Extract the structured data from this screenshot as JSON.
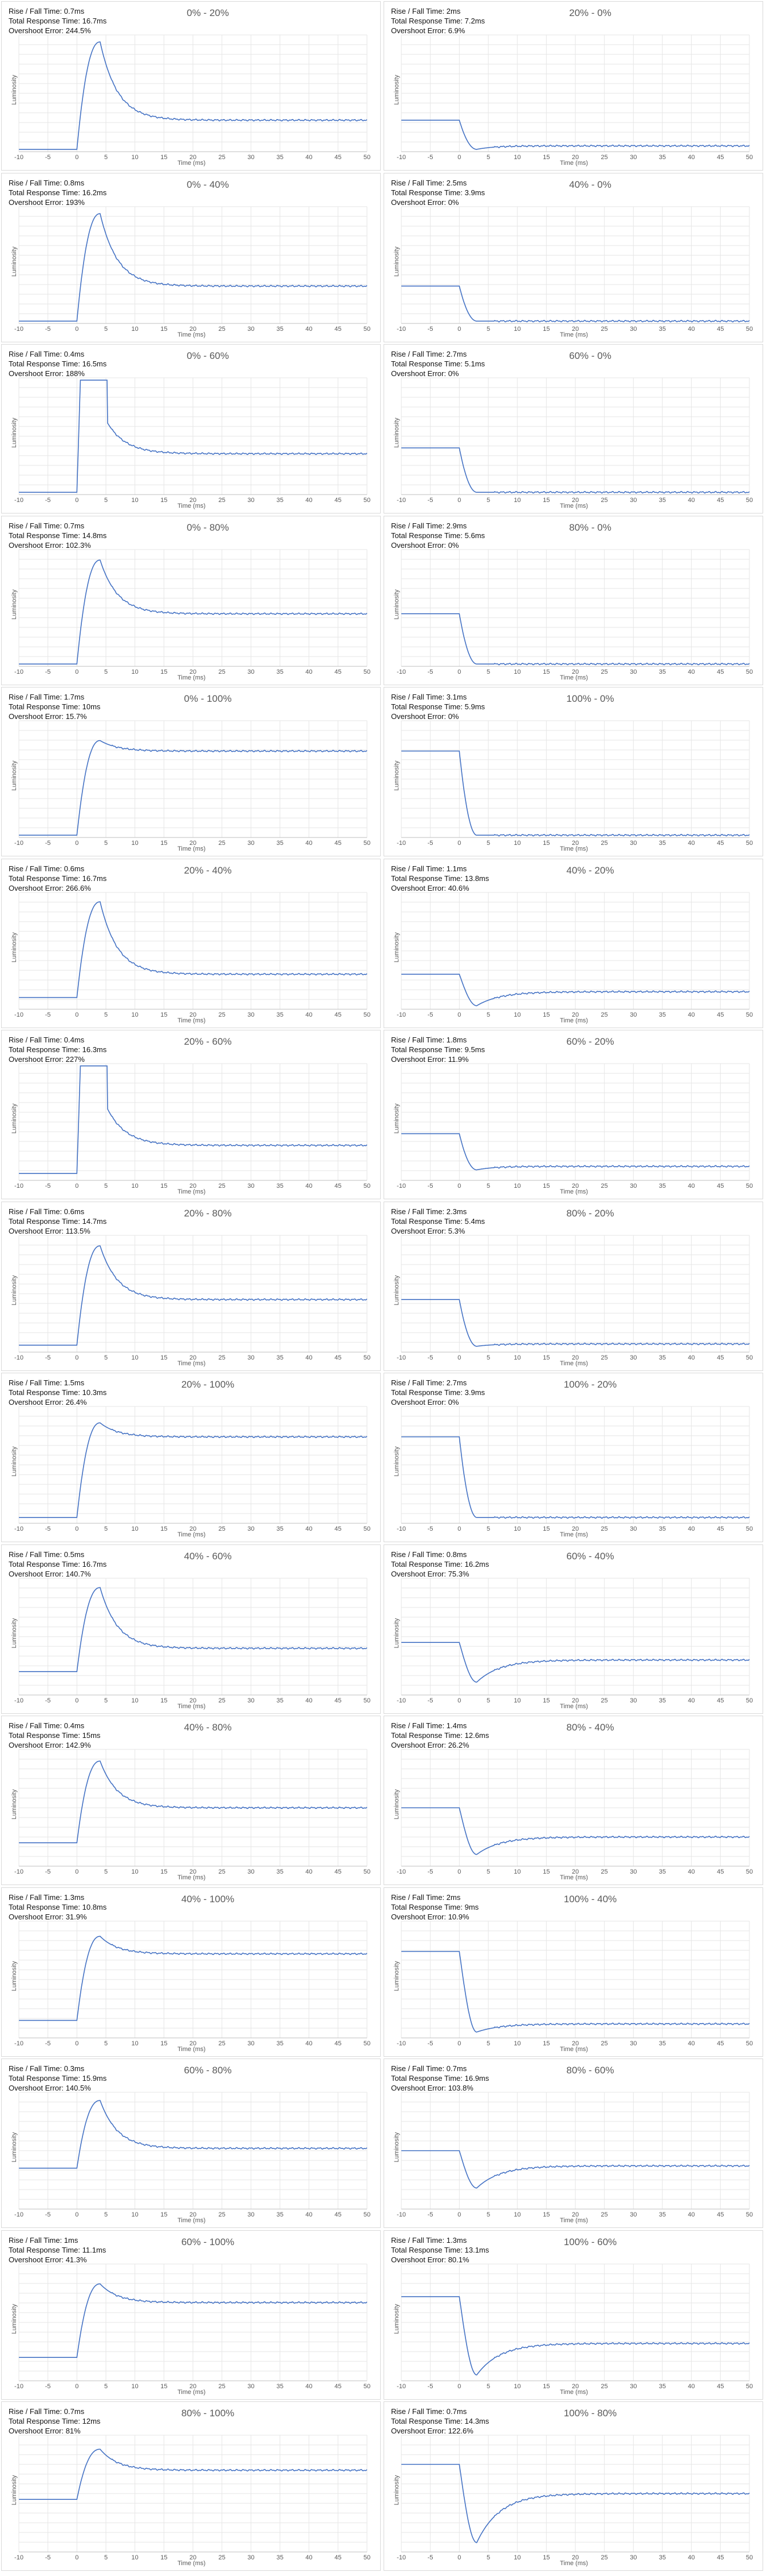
{
  "chart_data": [
    {
      "type": "line",
      "title": "0% - 20%",
      "xlabel": "Time (ms)",
      "ylabel": "Luminosity",
      "stats": [
        "Rise / Fall Time: 0.7ms",
        "Total Response Time: 16.7ms",
        "Overshoot Error: 244.5%"
      ],
      "x_ticks": [
        -10,
        -5,
        0,
        5,
        10,
        15,
        20,
        25,
        30,
        35,
        40,
        45,
        50
      ],
      "xlim": [
        -10,
        50
      ],
      "y_start": 0.02,
      "y_target": 0.27,
      "y_peak": 0.94,
      "shape": "overshoot_decay",
      "clipped": false
    },
    {
      "type": "line",
      "title": "20% - 0%",
      "xlabel": "Time (ms)",
      "ylabel": "Luminosity",
      "stats": [
        "Rise / Fall Time: 2ms",
        "Total Response Time: 7.2ms",
        "Overshoot Error: 6.9%"
      ],
      "x_ticks": [
        -10,
        -5,
        0,
        5,
        10,
        15,
        20,
        25,
        30,
        35,
        40,
        45,
        50
      ],
      "xlim": [
        -10,
        50
      ],
      "y_start": 0.27,
      "y_target": 0.05,
      "y_peak": 0.02,
      "shape": "fall",
      "clipped": false
    },
    {
      "type": "line",
      "title": "0% - 40%",
      "xlabel": "Time (ms)",
      "ylabel": "Luminosity",
      "stats": [
        "Rise / Fall Time: 0.8ms",
        "Total Response Time: 16.2ms",
        "Overshoot Error: 193%"
      ],
      "x_ticks": [
        -10,
        -5,
        0,
        5,
        10,
        15,
        20,
        25,
        30,
        35,
        40,
        45,
        50
      ],
      "xlim": [
        -10,
        50
      ],
      "y_start": 0.02,
      "y_target": 0.32,
      "y_peak": 0.94,
      "shape": "overshoot_decay",
      "clipped": false
    },
    {
      "type": "line",
      "title": "40% - 0%",
      "xlabel": "Time (ms)",
      "ylabel": "Luminosity",
      "stats": [
        "Rise / Fall Time: 2.5ms",
        "Total Response Time: 3.9ms",
        "Overshoot Error: 0%"
      ],
      "x_ticks": [
        -10,
        -5,
        0,
        5,
        10,
        15,
        20,
        25,
        30,
        35,
        40,
        45,
        50
      ],
      "xlim": [
        -10,
        50
      ],
      "y_start": 0.32,
      "y_target": 0.02,
      "y_peak": 0.02,
      "shape": "fall",
      "clipped": false
    },
    {
      "type": "line",
      "title": "0% - 60%",
      "xlabel": "Time (ms)",
      "ylabel": "Luminosity",
      "stats": [
        "Rise / Fall Time: 0.4ms",
        "Total Response Time: 16.5ms",
        "Overshoot Error: 188%"
      ],
      "x_ticks": [
        -10,
        -5,
        0,
        5,
        10,
        15,
        20,
        25,
        30,
        35,
        40,
        45,
        50
      ],
      "xlim": [
        -10,
        50
      ],
      "y_start": 0.02,
      "y_target": 0.35,
      "y_peak": 0.98,
      "shape": "overshoot_decay",
      "clipped": true
    },
    {
      "type": "line",
      "title": "60% - 0%",
      "xlabel": "Time (ms)",
      "ylabel": "Luminosity",
      "stats": [
        "Rise / Fall Time: 2.7ms",
        "Total Response Time: 5.1ms",
        "Overshoot Error: 0%"
      ],
      "x_ticks": [
        -10,
        -5,
        0,
        5,
        10,
        15,
        20,
        25,
        30,
        35,
        40,
        45,
        50
      ],
      "xlim": [
        -10,
        50
      ],
      "y_start": 0.4,
      "y_target": 0.02,
      "y_peak": 0.02,
      "shape": "fall",
      "clipped": false
    },
    {
      "type": "line",
      "title": "0% - 80%",
      "xlabel": "Time (ms)",
      "ylabel": "Luminosity",
      "stats": [
        "Rise / Fall Time: 0.7ms",
        "Total Response Time: 14.8ms",
        "Overshoot Error: 102.3%"
      ],
      "x_ticks": [
        -10,
        -5,
        0,
        5,
        10,
        15,
        20,
        25,
        30,
        35,
        40,
        45,
        50
      ],
      "xlim": [
        -10,
        50
      ],
      "y_start": 0.02,
      "y_target": 0.45,
      "y_peak": 0.91,
      "shape": "overshoot_decay",
      "clipped": false
    },
    {
      "type": "line",
      "title": "80% - 0%",
      "xlabel": "Time (ms)",
      "ylabel": "Luminosity",
      "stats": [
        "Rise / Fall Time: 2.9ms",
        "Total Response Time: 5.6ms",
        "Overshoot Error: 0%"
      ],
      "x_ticks": [
        -10,
        -5,
        0,
        5,
        10,
        15,
        20,
        25,
        30,
        35,
        40,
        45,
        50
      ],
      "xlim": [
        -10,
        50
      ],
      "y_start": 0.45,
      "y_target": 0.02,
      "y_peak": 0.02,
      "shape": "fall",
      "clipped": false
    },
    {
      "type": "line",
      "title": "0% - 100%",
      "xlabel": "Time (ms)",
      "ylabel": "Luminosity",
      "stats": [
        "Rise / Fall Time: 1.7ms",
        "Total Response Time: 10ms",
        "Overshoot Error: 15.7%"
      ],
      "x_ticks": [
        -10,
        -5,
        0,
        5,
        10,
        15,
        20,
        25,
        30,
        35,
        40,
        45,
        50
      ],
      "xlim": [
        -10,
        50
      ],
      "y_start": 0.02,
      "y_target": 0.74,
      "y_peak": 0.83,
      "shape": "overshoot_decay",
      "clipped": false
    },
    {
      "type": "line",
      "title": "100% - 0%",
      "xlabel": "Time (ms)",
      "ylabel": "Luminosity",
      "stats": [
        "Rise / Fall Time: 3.1ms",
        "Total Response Time: 5.9ms",
        "Overshoot Error: 0%"
      ],
      "x_ticks": [
        -10,
        -5,
        0,
        5,
        10,
        15,
        20,
        25,
        30,
        35,
        40,
        45,
        50
      ],
      "xlim": [
        -10,
        50
      ],
      "y_start": 0.74,
      "y_target": 0.02,
      "y_peak": 0.02,
      "shape": "fall",
      "clipped": false
    },
    {
      "type": "line",
      "title": "20% - 40%",
      "xlabel": "Time (ms)",
      "ylabel": "Luminosity",
      "stats": [
        "Rise / Fall Time: 0.6ms",
        "Total Response Time: 16.7ms",
        "Overshoot Error: 266.6%"
      ],
      "x_ticks": [
        -10,
        -5,
        0,
        5,
        10,
        15,
        20,
        25,
        30,
        35,
        40,
        45,
        50
      ],
      "xlim": [
        -10,
        50
      ],
      "y_start": 0.1,
      "y_target": 0.3,
      "y_peak": 0.92,
      "shape": "overshoot_decay",
      "clipped": false
    },
    {
      "type": "line",
      "title": "40% - 20%",
      "xlabel": "Time (ms)",
      "ylabel": "Luminosity",
      "stats": [
        "Rise / Fall Time: 1.1ms",
        "Total Response Time: 13.8ms",
        "Overshoot Error: 40.6%"
      ],
      "x_ticks": [
        -10,
        -5,
        0,
        5,
        10,
        15,
        20,
        25,
        30,
        35,
        40,
        45,
        50
      ],
      "xlim": [
        -10,
        50
      ],
      "y_start": 0.3,
      "y_target": 0.15,
      "y_peak": 0.03,
      "shape": "undershoot_recover",
      "clipped": false
    },
    {
      "type": "line",
      "title": "20% - 60%",
      "xlabel": "Time (ms)",
      "ylabel": "Luminosity",
      "stats": [
        "Rise / Fall Time: 0.4ms",
        "Total Response Time: 16.3ms",
        "Overshoot Error: 227%"
      ],
      "x_ticks": [
        -10,
        -5,
        0,
        5,
        10,
        15,
        20,
        25,
        30,
        35,
        40,
        45,
        50
      ],
      "xlim": [
        -10,
        50
      ],
      "y_start": 0.06,
      "y_target": 0.3,
      "y_peak": 0.98,
      "shape": "overshoot_decay",
      "clipped": true
    },
    {
      "type": "line",
      "title": "60% - 20%",
      "xlabel": "Time (ms)",
      "ylabel": "Luminosity",
      "stats": [
        "Rise / Fall Time: 1.8ms",
        "Total Response Time: 9.5ms",
        "Overshoot Error: 11.9%"
      ],
      "x_ticks": [
        -10,
        -5,
        0,
        5,
        10,
        15,
        20,
        25,
        30,
        35,
        40,
        45,
        50
      ],
      "xlim": [
        -10,
        50
      ],
      "y_start": 0.4,
      "y_target": 0.12,
      "y_peak": 0.09,
      "shape": "fall",
      "clipped": false
    },
    {
      "type": "line",
      "title": "20% - 80%",
      "xlabel": "Time (ms)",
      "ylabel": "Luminosity",
      "stats": [
        "Rise / Fall Time: 0.6ms",
        "Total Response Time: 14.7ms",
        "Overshoot Error: 113.5%"
      ],
      "x_ticks": [
        -10,
        -5,
        0,
        5,
        10,
        15,
        20,
        25,
        30,
        35,
        40,
        45,
        50
      ],
      "xlim": [
        -10,
        50
      ],
      "y_start": 0.06,
      "y_target": 0.45,
      "y_peak": 0.91,
      "shape": "overshoot_decay",
      "clipped": false
    },
    {
      "type": "line",
      "title": "80% - 20%",
      "xlabel": "Time (ms)",
      "ylabel": "Luminosity",
      "stats": [
        "Rise / Fall Time: 2.3ms",
        "Total Response Time: 5.4ms",
        "Overshoot Error: 5.3%"
      ],
      "x_ticks": [
        -10,
        -5,
        0,
        5,
        10,
        15,
        20,
        25,
        30,
        35,
        40,
        45,
        50
      ],
      "xlim": [
        -10,
        50
      ],
      "y_start": 0.45,
      "y_target": 0.07,
      "y_peak": 0.05,
      "shape": "fall",
      "clipped": false
    },
    {
      "type": "line",
      "title": "20% - 100%",
      "xlabel": "Time (ms)",
      "ylabel": "Luminosity",
      "stats": [
        "Rise / Fall Time: 1.5ms",
        "Total Response Time: 10.3ms",
        "Overshoot Error: 26.4%"
      ],
      "x_ticks": [
        -10,
        -5,
        0,
        5,
        10,
        15,
        20,
        25,
        30,
        35,
        40,
        45,
        50
      ],
      "xlim": [
        -10,
        50
      ],
      "y_start": 0.05,
      "y_target": 0.74,
      "y_peak": 0.86,
      "shape": "overshoot_decay",
      "clipped": false
    },
    {
      "type": "line",
      "title": "100% - 20%",
      "xlabel": "Time (ms)",
      "ylabel": "Luminosity",
      "stats": [
        "Rise / Fall Time: 2.7ms",
        "Total Response Time: 3.9ms",
        "Overshoot Error: 0%"
      ],
      "x_ticks": [
        -10,
        -5,
        0,
        5,
        10,
        15,
        20,
        25,
        30,
        35,
        40,
        45,
        50
      ],
      "xlim": [
        -10,
        50
      ],
      "y_start": 0.74,
      "y_target": 0.05,
      "y_peak": 0.05,
      "shape": "fall",
      "clipped": false
    },
    {
      "type": "line",
      "title": "40% - 60%",
      "xlabel": "Time (ms)",
      "ylabel": "Luminosity",
      "stats": [
        "Rise / Fall Time: 0.5ms",
        "Total Response Time: 16.7ms",
        "Overshoot Error: 140.7%"
      ],
      "x_ticks": [
        -10,
        -5,
        0,
        5,
        10,
        15,
        20,
        25,
        30,
        35,
        40,
        45,
        50
      ],
      "xlim": [
        -10,
        50
      ],
      "y_start": 0.2,
      "y_target": 0.4,
      "y_peak": 0.92,
      "shape": "overshoot_decay",
      "clipped": false
    },
    {
      "type": "line",
      "title": "60% - 40%",
      "xlabel": "Time (ms)",
      "ylabel": "Luminosity",
      "stats": [
        "Rise / Fall Time: 0.8ms",
        "Total Response Time: 16.2ms",
        "Overshoot Error: 75.3%"
      ],
      "x_ticks": [
        -10,
        -5,
        0,
        5,
        10,
        15,
        20,
        25,
        30,
        35,
        40,
        45,
        50
      ],
      "xlim": [
        -10,
        50
      ],
      "y_start": 0.45,
      "y_target": 0.3,
      "y_peak": 0.11,
      "shape": "undershoot_recover",
      "clipped": false
    },
    {
      "type": "line",
      "title": "40% - 80%",
      "xlabel": "Time (ms)",
      "ylabel": "Luminosity",
      "stats": [
        "Rise / Fall Time: 0.4ms",
        "Total Response Time: 15ms",
        "Overshoot Error: 142.9%"
      ],
      "x_ticks": [
        -10,
        -5,
        0,
        5,
        10,
        15,
        20,
        25,
        30,
        35,
        40,
        45,
        50
      ],
      "xlim": [
        -10,
        50
      ],
      "y_start": 0.2,
      "y_target": 0.5,
      "y_peak": 0.9,
      "shape": "overshoot_decay",
      "clipped": false
    },
    {
      "type": "line",
      "title": "80% - 40%",
      "xlabel": "Time (ms)",
      "ylabel": "Luminosity",
      "stats": [
        "Rise / Fall Time: 1.4ms",
        "Total Response Time: 12.6ms",
        "Overshoot Error: 26.2%"
      ],
      "x_ticks": [
        -10,
        -5,
        0,
        5,
        10,
        15,
        20,
        25,
        30,
        35,
        40,
        45,
        50
      ],
      "xlim": [
        -10,
        50
      ],
      "y_start": 0.5,
      "y_target": 0.25,
      "y_peak": 0.1,
      "shape": "undershoot_recover",
      "clipped": false
    },
    {
      "type": "line",
      "title": "40% - 100%",
      "xlabel": "Time (ms)",
      "ylabel": "Luminosity",
      "stats": [
        "Rise / Fall Time: 1.3ms",
        "Total Response Time: 10.8ms",
        "Overshoot Error: 31.9%"
      ],
      "x_ticks": [
        -10,
        -5,
        0,
        5,
        10,
        15,
        20,
        25,
        30,
        35,
        40,
        45,
        50
      ],
      "xlim": [
        -10,
        50
      ],
      "y_start": 0.15,
      "y_target": 0.72,
      "y_peak": 0.87,
      "shape": "overshoot_decay",
      "clipped": false
    },
    {
      "type": "line",
      "title": "100% - 40%",
      "xlabel": "Time (ms)",
      "ylabel": "Luminosity",
      "stats": [
        "Rise / Fall Time: 2ms",
        "Total Response Time: 9ms",
        "Overshoot Error: 10.9%"
      ],
      "x_ticks": [
        -10,
        -5,
        0,
        5,
        10,
        15,
        20,
        25,
        30,
        35,
        40,
        45,
        50
      ],
      "xlim": [
        -10,
        50
      ],
      "y_start": 0.74,
      "y_target": 0.12,
      "y_peak": 0.05,
      "shape": "undershoot_recover",
      "clipped": false
    },
    {
      "type": "line",
      "title": "60% - 80%",
      "xlabel": "Time (ms)",
      "ylabel": "Luminosity",
      "stats": [
        "Rise / Fall Time: 0.3ms",
        "Total Response Time: 15.9ms",
        "Overshoot Error: 140.5%"
      ],
      "x_ticks": [
        -10,
        -5,
        0,
        5,
        10,
        15,
        20,
        25,
        30,
        35,
        40,
        45,
        50
      ],
      "xlim": [
        -10,
        50
      ],
      "y_start": 0.35,
      "y_target": 0.52,
      "y_peak": 0.93,
      "shape": "overshoot_decay",
      "clipped": false
    },
    {
      "type": "line",
      "title": "80% - 60%",
      "xlabel": "Time (ms)",
      "ylabel": "Luminosity",
      "stats": [
        "Rise / Fall Time: 0.7ms",
        "Total Response Time: 16.9ms",
        "Overshoot Error: 103.8%"
      ],
      "x_ticks": [
        -10,
        -5,
        0,
        5,
        10,
        15,
        20,
        25,
        30,
        35,
        40,
        45,
        50
      ],
      "xlim": [
        -10,
        50
      ],
      "y_start": 0.5,
      "y_target": 0.37,
      "y_peak": 0.18,
      "shape": "undershoot_recover",
      "clipped": false
    },
    {
      "type": "line",
      "title": "60% - 100%",
      "xlabel": "Time (ms)",
      "ylabel": "Luminosity",
      "stats": [
        "Rise / Fall Time: 1ms",
        "Total Response Time: 11.1ms",
        "Overshoot Error: 41.3%"
      ],
      "x_ticks": [
        -10,
        -5,
        0,
        5,
        10,
        15,
        20,
        25,
        30,
        35,
        40,
        45,
        50
      ],
      "xlim": [
        -10,
        50
      ],
      "y_start": 0.2,
      "y_target": 0.67,
      "y_peak": 0.83,
      "shape": "overshoot_decay",
      "clipped": false
    },
    {
      "type": "line",
      "title": "100% - 60%",
      "xlabel": "Time (ms)",
      "ylabel": "Luminosity",
      "stats": [
        "Rise / Fall Time: 1.3ms",
        "Total Response Time: 13.1ms",
        "Overshoot Error: 80.1%"
      ],
      "x_ticks": [
        -10,
        -5,
        0,
        5,
        10,
        15,
        20,
        25,
        30,
        35,
        40,
        45,
        50
      ],
      "xlim": [
        -10,
        50
      ],
      "y_start": 0.72,
      "y_target": 0.32,
      "y_peak": 0.05,
      "shape": "undershoot_recover",
      "clipped": false
    },
    {
      "type": "line",
      "title": "80% - 100%",
      "xlabel": "Time (ms)",
      "ylabel": "Luminosity",
      "stats": [
        "Rise / Fall Time: 0.7ms",
        "Total Response Time: 12ms",
        "Overshoot Error: 81%"
      ],
      "x_ticks": [
        -10,
        -5,
        0,
        5,
        10,
        15,
        20,
        25,
        30,
        35,
        40,
        45,
        50
      ],
      "xlim": [
        -10,
        50
      ],
      "y_start": 0.45,
      "y_target": 0.7,
      "y_peak": 0.88,
      "shape": "overshoot_decay",
      "clipped": false
    },
    {
      "type": "line",
      "title": "100% - 80%",
      "xlabel": "Time (ms)",
      "ylabel": "Luminosity",
      "stats": [
        "Rise / Fall Time: 0.7ms",
        "Total Response Time: 14.3ms",
        "Overshoot Error: 122.6%"
      ],
      "x_ticks": [
        -10,
        -5,
        0,
        5,
        10,
        15,
        20,
        25,
        30,
        35,
        40,
        45,
        50
      ],
      "xlim": [
        -10,
        50
      ],
      "y_start": 0.75,
      "y_target": 0.5,
      "y_peak": 0.08,
      "shape": "undershoot_recover",
      "clipped": false
    }
  ],
  "colors": {
    "line": "#4472c4",
    "grid": "#e6e6e6",
    "border": "#d9d9d9",
    "text": "#595959"
  }
}
